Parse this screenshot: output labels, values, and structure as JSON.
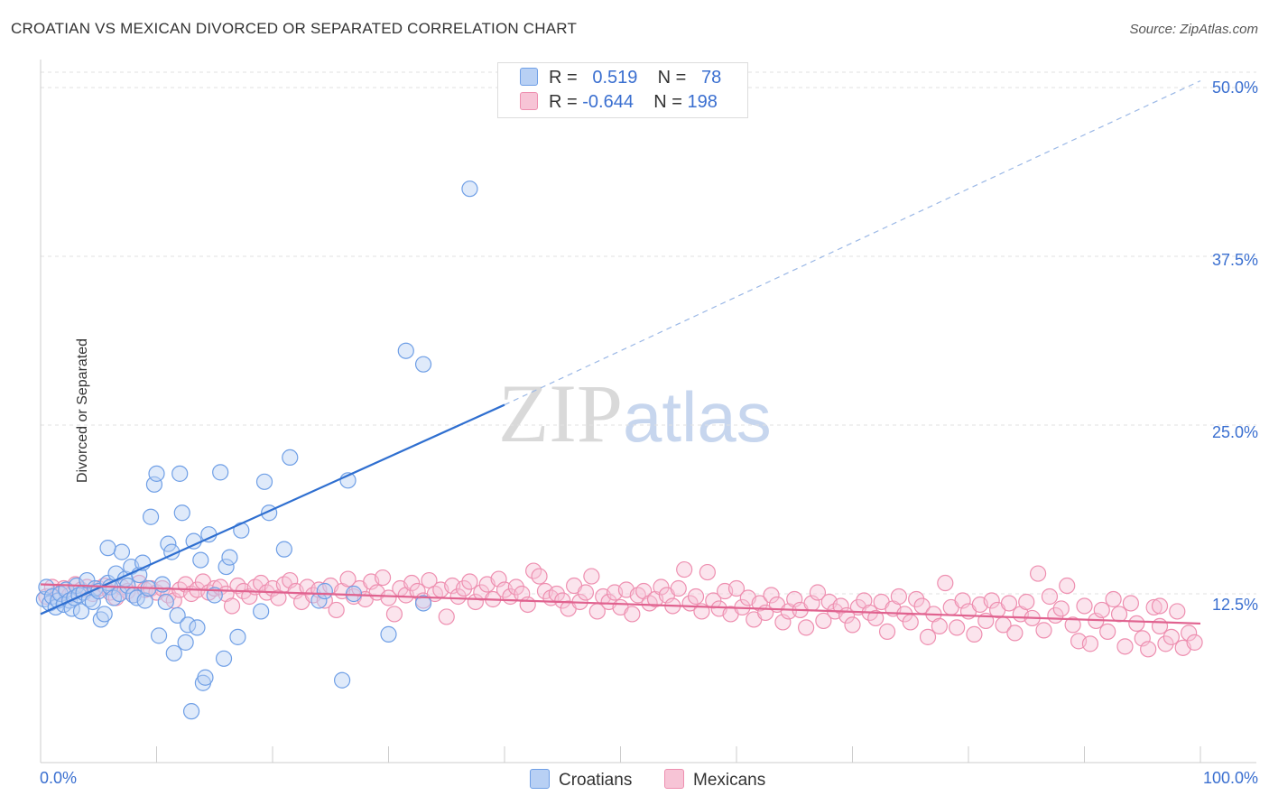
{
  "title": "CROATIAN VS MEXICAN DIVORCED OR SEPARATED CORRELATION CHART",
  "source": "Source: ZipAtlas.com",
  "watermark": {
    "a": "ZIP",
    "b": "atlas"
  },
  "legend": {
    "r_label": "R =",
    "n_label": "N =",
    "croatians": {
      "r": "0.519",
      "n": "78"
    },
    "mexicans": {
      "r": "-0.644",
      "n": "198"
    }
  },
  "colors": {
    "croatians": "#6f9fe6",
    "croatians_fill": "#b8d0f4",
    "croatians_line": "#2f6fd0",
    "mexicans": "#ee8fb0",
    "mexicans_fill": "#f7c4d6",
    "mexicans_line": "#e0628f"
  },
  "chart_data": {
    "type": "scatter",
    "xlabel": "",
    "ylabel": "Divorced or Separated",
    "xlim": [
      0,
      100
    ],
    "ylim": [
      0,
      50
    ],
    "x_tick_labels": [
      "0.0%",
      "100.0%"
    ],
    "y_tick_labels": [
      "12.5%",
      "25.0%",
      "37.5%",
      "50.0%"
    ],
    "y_ticks": [
      12.5,
      25.0,
      37.5,
      50.0
    ],
    "legend_placement": "top-center",
    "series": [
      {
        "name": "Croatians",
        "trend": {
          "x0": 0,
          "y0": 11.0,
          "x1": 40,
          "y1": 26.5,
          "dashed_to_x": 100,
          "dashed_to_y": 50.5
        },
        "points": [
          [
            0.3,
            12.1
          ],
          [
            0.5,
            13.0
          ],
          [
            0.8,
            11.8
          ],
          [
            1.0,
            12.3
          ],
          [
            1.3,
            11.5
          ],
          [
            1.5,
            12.0
          ],
          [
            1.7,
            12.5
          ],
          [
            2.0,
            11.7
          ],
          [
            2.2,
            12.8
          ],
          [
            2.5,
            12.0
          ],
          [
            2.7,
            11.4
          ],
          [
            2.9,
            12.2
          ],
          [
            3.1,
            13.1
          ],
          [
            3.3,
            12.4
          ],
          [
            3.5,
            11.2
          ],
          [
            3.7,
            12.6
          ],
          [
            4.0,
            13.5
          ],
          [
            4.2,
            12.1
          ],
          [
            4.5,
            11.9
          ],
          [
            4.7,
            12.9
          ],
          [
            5.0,
            12.7
          ],
          [
            5.2,
            10.6
          ],
          [
            5.5,
            11.0
          ],
          [
            5.8,
            13.3
          ],
          [
            6.0,
            13.0
          ],
          [
            6.3,
            12.2
          ],
          [
            6.5,
            14.0
          ],
          [
            6.8,
            12.5
          ],
          [
            7.0,
            15.6
          ],
          [
            7.3,
            13.6
          ],
          [
            7.5,
            13.1
          ],
          [
            7.8,
            14.5
          ],
          [
            8.0,
            12.4
          ],
          [
            8.3,
            12.2
          ],
          [
            8.5,
            13.9
          ],
          [
            8.8,
            14.8
          ],
          [
            9.0,
            12.0
          ],
          [
            9.3,
            12.9
          ],
          [
            9.5,
            18.2
          ],
          [
            9.8,
            20.6
          ],
          [
            10.0,
            21.4
          ],
          [
            10.2,
            9.4
          ],
          [
            10.5,
            13.2
          ],
          [
            10.8,
            11.9
          ],
          [
            11.0,
            16.2
          ],
          [
            11.3,
            15.6
          ],
          [
            11.5,
            8.1
          ],
          [
            11.8,
            10.9
          ],
          [
            12.0,
            21.4
          ],
          [
            12.2,
            18.5
          ],
          [
            12.5,
            8.9
          ],
          [
            12.7,
            10.2
          ],
          [
            13.0,
            3.8
          ],
          [
            13.2,
            16.4
          ],
          [
            13.5,
            10.0
          ],
          [
            13.8,
            15.0
          ],
          [
            14.0,
            5.9
          ],
          [
            14.2,
            6.3
          ],
          [
            14.5,
            16.9
          ],
          [
            15.0,
            12.4
          ],
          [
            15.5,
            21.5
          ],
          [
            15.8,
            7.7
          ],
          [
            16.0,
            14.5
          ],
          [
            16.3,
            15.2
          ],
          [
            17.0,
            9.3
          ],
          [
            17.3,
            17.2
          ],
          [
            19.0,
            11.2
          ],
          [
            19.3,
            20.8
          ],
          [
            19.7,
            18.5
          ],
          [
            21.0,
            15.8
          ],
          [
            21.5,
            22.6
          ],
          [
            26.0,
            6.1
          ],
          [
            26.5,
            20.9
          ],
          [
            27.0,
            12.5
          ],
          [
            24.0,
            12.0
          ],
          [
            24.5,
            12.7
          ],
          [
            30.0,
            9.5
          ],
          [
            31.5,
            30.5
          ],
          [
            33.0,
            29.5
          ],
          [
            33.0,
            11.8
          ],
          [
            37.0,
            42.5
          ],
          [
            5.8,
            15.9
          ]
        ]
      },
      {
        "name": "Mexicans",
        "trend": {
          "x0": 0,
          "y0": 13.2,
          "x1": 100,
          "y1": 10.3
        },
        "points": [
          [
            0.5,
            12.3
          ],
          [
            1.0,
            13.0
          ],
          [
            1.5,
            12.6
          ],
          [
            2.0,
            12.9
          ],
          [
            2.5,
            12.4
          ],
          [
            3.0,
            13.2
          ],
          [
            3.5,
            12.8
          ],
          [
            4.0,
            13.0
          ],
          [
            4.5,
            12.5
          ],
          [
            5.0,
            12.9
          ],
          [
            5.5,
            13.1
          ],
          [
            6.0,
            12.6
          ],
          [
            6.5,
            12.2
          ],
          [
            7.0,
            13.0
          ],
          [
            7.5,
            12.7
          ],
          [
            8.0,
            12.4
          ],
          [
            8.5,
            13.3
          ],
          [
            9.0,
            12.8
          ],
          [
            9.5,
            12.9
          ],
          [
            10.0,
            12.6
          ],
          [
            10.5,
            12.9
          ],
          [
            11.0,
            12.4
          ],
          [
            11.5,
            12.0
          ],
          [
            12.0,
            12.8
          ],
          [
            12.5,
            13.2
          ],
          [
            13.0,
            12.5
          ],
          [
            13.5,
            12.8
          ],
          [
            14.0,
            13.4
          ],
          [
            14.5,
            12.6
          ],
          [
            15.0,
            12.9
          ],
          [
            15.5,
            13.0
          ],
          [
            16.0,
            12.5
          ],
          [
            16.5,
            11.6
          ],
          [
            17.0,
            13.1
          ],
          [
            17.5,
            12.7
          ],
          [
            18.0,
            12.3
          ],
          [
            18.5,
            13.0
          ],
          [
            19.0,
            13.3
          ],
          [
            19.5,
            12.6
          ],
          [
            20.0,
            12.9
          ],
          [
            20.5,
            12.2
          ],
          [
            21.0,
            13.2
          ],
          [
            21.5,
            13.5
          ],
          [
            22.0,
            12.7
          ],
          [
            22.5,
            11.9
          ],
          [
            23.0,
            13.0
          ],
          [
            23.5,
            12.4
          ],
          [
            24.0,
            12.8
          ],
          [
            24.5,
            12.0
          ],
          [
            25.0,
            13.1
          ],
          [
            25.5,
            11.3
          ],
          [
            26.0,
            12.7
          ],
          [
            26.5,
            13.6
          ],
          [
            27.0,
            12.3
          ],
          [
            27.5,
            12.9
          ],
          [
            28.0,
            12.1
          ],
          [
            28.5,
            13.4
          ],
          [
            29.0,
            12.6
          ],
          [
            29.5,
            13.7
          ],
          [
            30.0,
            12.2
          ],
          [
            30.5,
            11.0
          ],
          [
            31.0,
            12.9
          ],
          [
            31.5,
            12.4
          ],
          [
            32.0,
            13.3
          ],
          [
            32.5,
            12.7
          ],
          [
            33.0,
            12.0
          ],
          [
            33.5,
            13.5
          ],
          [
            34.0,
            12.5
          ],
          [
            34.5,
            12.8
          ],
          [
            35.0,
            10.8
          ],
          [
            35.5,
            13.1
          ],
          [
            36.0,
            12.3
          ],
          [
            36.5,
            12.9
          ],
          [
            37.0,
            13.4
          ],
          [
            37.5,
            11.9
          ],
          [
            38.0,
            12.6
          ],
          [
            38.5,
            13.2
          ],
          [
            39.0,
            12.1
          ],
          [
            39.5,
            13.6
          ],
          [
            40.0,
            12.8
          ],
          [
            40.5,
            12.3
          ],
          [
            41.0,
            13.0
          ],
          [
            41.5,
            12.5
          ],
          [
            42.0,
            11.7
          ],
          [
            42.5,
            14.2
          ],
          [
            43.0,
            13.8
          ],
          [
            43.5,
            12.7
          ],
          [
            44.0,
            12.2
          ],
          [
            44.5,
            12.5
          ],
          [
            45.0,
            12.0
          ],
          [
            45.5,
            11.4
          ],
          [
            46.0,
            13.1
          ],
          [
            46.5,
            11.9
          ],
          [
            47.0,
            12.6
          ],
          [
            47.5,
            13.8
          ],
          [
            48.0,
            11.2
          ],
          [
            48.5,
            12.3
          ],
          [
            49.0,
            11.9
          ],
          [
            49.5,
            12.6
          ],
          [
            50.0,
            11.5
          ],
          [
            50.5,
            12.8
          ],
          [
            51.0,
            11.0
          ],
          [
            51.5,
            12.4
          ],
          [
            52.0,
            12.7
          ],
          [
            52.5,
            11.8
          ],
          [
            53.0,
            12.1
          ],
          [
            53.5,
            13.0
          ],
          [
            54.0,
            12.4
          ],
          [
            54.5,
            11.6
          ],
          [
            55.0,
            12.9
          ],
          [
            55.5,
            14.3
          ],
          [
            56.0,
            11.8
          ],
          [
            56.5,
            12.3
          ],
          [
            57.0,
            11.2
          ],
          [
            57.5,
            14.1
          ],
          [
            58.0,
            12.0
          ],
          [
            58.5,
            11.4
          ],
          [
            59.0,
            12.7
          ],
          [
            59.5,
            11.0
          ],
          [
            60.0,
            12.9
          ],
          [
            60.5,
            11.5
          ],
          [
            61.0,
            12.2
          ],
          [
            61.5,
            10.6
          ],
          [
            62.0,
            11.8
          ],
          [
            62.5,
            11.1
          ],
          [
            63.0,
            12.4
          ],
          [
            63.5,
            11.7
          ],
          [
            64.0,
            10.4
          ],
          [
            64.5,
            11.2
          ],
          [
            65.0,
            12.1
          ],
          [
            65.5,
            11.3
          ],
          [
            66.0,
            10.0
          ],
          [
            66.5,
            11.8
          ],
          [
            67.0,
            12.6
          ],
          [
            67.5,
            10.5
          ],
          [
            68.0,
            11.9
          ],
          [
            68.5,
            11.2
          ],
          [
            69.0,
            11.6
          ],
          [
            69.5,
            10.9
          ],
          [
            70.0,
            10.2
          ],
          [
            70.5,
            11.5
          ],
          [
            71.0,
            12.0
          ],
          [
            71.5,
            11.1
          ],
          [
            72.0,
            10.7
          ],
          [
            72.5,
            11.9
          ],
          [
            73.0,
            9.7
          ],
          [
            73.5,
            11.4
          ],
          [
            74.0,
            12.3
          ],
          [
            74.5,
            11.0
          ],
          [
            75.0,
            10.4
          ],
          [
            75.5,
            12.1
          ],
          [
            76.0,
            11.6
          ],
          [
            76.5,
            9.3
          ],
          [
            77.0,
            11.0
          ],
          [
            77.5,
            10.1
          ],
          [
            78.0,
            13.3
          ],
          [
            78.5,
            11.5
          ],
          [
            79.0,
            10.0
          ],
          [
            79.5,
            12.0
          ],
          [
            80.0,
            11.2
          ],
          [
            80.5,
            9.5
          ],
          [
            81.0,
            11.7
          ],
          [
            81.5,
            10.5
          ],
          [
            82.0,
            12.0
          ],
          [
            82.5,
            11.3
          ],
          [
            83.0,
            10.2
          ],
          [
            83.5,
            11.8
          ],
          [
            84.0,
            9.6
          ],
          [
            84.5,
            11.0
          ],
          [
            85.0,
            11.9
          ],
          [
            85.5,
            10.7
          ],
          [
            86.0,
            14.0
          ],
          [
            86.5,
            9.8
          ],
          [
            87.0,
            12.3
          ],
          [
            87.5,
            10.9
          ],
          [
            88.0,
            11.4
          ],
          [
            88.5,
            13.1
          ],
          [
            89.0,
            10.2
          ],
          [
            89.5,
            9.0
          ],
          [
            90.0,
            11.6
          ],
          [
            90.5,
            8.8
          ],
          [
            91.0,
            10.5
          ],
          [
            91.5,
            11.3
          ],
          [
            92.0,
            9.7
          ],
          [
            92.5,
            12.1
          ],
          [
            93.0,
            11.0
          ],
          [
            93.5,
            8.6
          ],
          [
            94.0,
            11.8
          ],
          [
            94.5,
            10.3
          ],
          [
            95.0,
            9.2
          ],
          [
            95.5,
            8.4
          ],
          [
            96.0,
            11.5
          ],
          [
            96.5,
            10.1
          ],
          [
            97.0,
            8.8
          ],
          [
            97.5,
            9.3
          ],
          [
            98.0,
            11.2
          ],
          [
            98.5,
            8.5
          ],
          [
            99.0,
            9.6
          ],
          [
            99.5,
            8.9
          ],
          [
            96.5,
            11.6
          ]
        ]
      }
    ]
  }
}
